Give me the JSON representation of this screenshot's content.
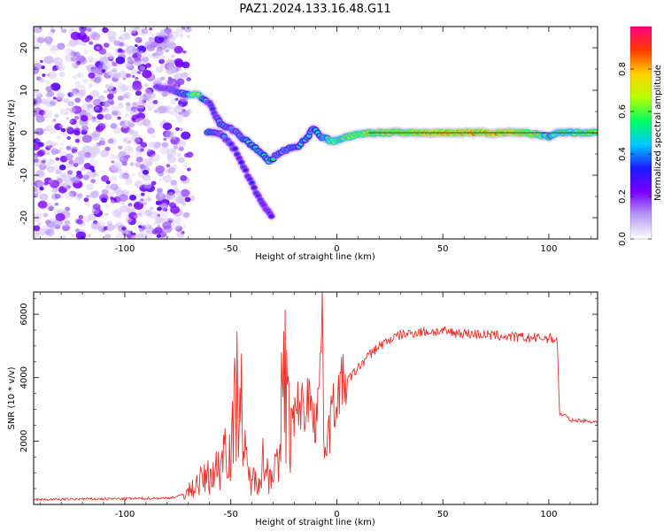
{
  "title": "PAZ1.2024.133.16.48.G11",
  "chart_data": [
    {
      "type": "heatmap",
      "xlabel": "Height of straight line (km)",
      "ylabel": "Frequency (Hz)",
      "xlim": [
        -143,
        123
      ],
      "ylim": [
        -25,
        25
      ],
      "xticks": [
        -100,
        -50,
        0,
        50,
        100
      ],
      "yticks": [
        -20,
        -10,
        0,
        10,
        20
      ],
      "colorbar": {
        "label": "Normalized spectral amplitude",
        "range": [
          0,
          1
        ],
        "ticks": [
          0.0,
          0.2,
          0.4,
          0.6,
          0.8
        ],
        "colors": [
          "#ffffff",
          "#b89cf2",
          "#7a00ff",
          "#1a1aff",
          "#00c8ff",
          "#00ff60",
          "#b8ff00",
          "#ffd000",
          "#ff3a00",
          "#ff0080"
        ]
      },
      "noise_region_x": [
        -143,
        -72
      ],
      "ridge": [
        {
          "x": -85,
          "y": 11,
          "a": 0.28
        },
        {
          "x": -78,
          "y": 10,
          "a": 0.35
        },
        {
          "x": -70,
          "y": 9,
          "a": 0.55
        },
        {
          "x": -66,
          "y": 9,
          "a": 0.8
        },
        {
          "x": -60,
          "y": 7,
          "a": 0.3
        },
        {
          "x": -57,
          "y": 4,
          "a": 0.35
        },
        {
          "x": -55,
          "y": 2,
          "a": 0.45
        },
        {
          "x": -50,
          "y": 1,
          "a": 0.4
        },
        {
          "x": -45,
          "y": -1,
          "a": 0.45
        },
        {
          "x": -40,
          "y": -3,
          "a": 0.5
        },
        {
          "x": -35,
          "y": -5,
          "a": 0.5
        },
        {
          "x": -32,
          "y": -7,
          "a": 0.55
        },
        {
          "x": -28,
          "y": -5,
          "a": 0.45
        },
        {
          "x": -24,
          "y": -4,
          "a": 0.45
        },
        {
          "x": -18,
          "y": -3,
          "a": 0.5
        },
        {
          "x": -14,
          "y": -1,
          "a": 0.5
        },
        {
          "x": -11,
          "y": 1,
          "a": 0.45
        },
        {
          "x": -7,
          "y": -1,
          "a": 0.55
        },
        {
          "x": -2,
          "y": -2,
          "a": 0.65
        },
        {
          "x": 5,
          "y": -1,
          "a": 0.7
        },
        {
          "x": 15,
          "y": 0,
          "a": 0.75
        },
        {
          "x": 30,
          "y": 0,
          "a": 0.8
        },
        {
          "x": 50,
          "y": 0,
          "a": 0.85
        },
        {
          "x": 70,
          "y": 0,
          "a": 0.85
        },
        {
          "x": 90,
          "y": 0,
          "a": 0.8
        },
        {
          "x": 100,
          "y": -1,
          "a": 0.6
        },
        {
          "x": 105,
          "y": 0,
          "a": 0.65
        },
        {
          "x": 115,
          "y": 0,
          "a": 0.7
        },
        {
          "x": 123,
          "y": 0,
          "a": 0.7
        }
      ],
      "lower_branch": [
        {
          "x": -61,
          "y": 0,
          "a": 0.5
        },
        {
          "x": -55,
          "y": 0,
          "a": 0.4
        },
        {
          "x": -48,
          "y": -4,
          "a": 0.3
        },
        {
          "x": -44,
          "y": -8,
          "a": 0.3
        },
        {
          "x": -40,
          "y": -12,
          "a": 0.35
        },
        {
          "x": -36,
          "y": -16,
          "a": 0.3
        },
        {
          "x": -30,
          "y": -20,
          "a": 0.2
        }
      ]
    },
    {
      "type": "line",
      "xlabel": "Height of straight line (km)",
      "ylabel": "SNR (10 * v/v)",
      "xlim": [
        -143,
        123
      ],
      "ylim": [
        0,
        6700
      ],
      "xticks": [
        -100,
        -50,
        0,
        50,
        100
      ],
      "yticks": [
        2000,
        4000,
        6000
      ],
      "color": "#e8302a",
      "points": [
        [
          -143,
          150
        ],
        [
          -120,
          170
        ],
        [
          -100,
          180
        ],
        [
          -80,
          200
        ],
        [
          -75,
          250
        ],
        [
          -70,
          400
        ],
        [
          -65,
          700
        ],
        [
          -60,
          900
        ],
        [
          -55,
          1200
        ],
        [
          -52,
          2200
        ],
        [
          -50,
          1500
        ],
        [
          -48,
          3000
        ],
        [
          -46,
          4500
        ],
        [
          -44,
          1800
        ],
        [
          -42,
          900
        ],
        [
          -38,
          700
        ],
        [
          -35,
          1400
        ],
        [
          -32,
          900
        ],
        [
          -30,
          1300
        ],
        [
          -27,
          1000
        ],
        [
          -25,
          5700
        ],
        [
          -24,
          3500
        ],
        [
          -22,
          2300
        ],
        [
          -20,
          2600
        ],
        [
          -18,
          3200
        ],
        [
          -15,
          3000
        ],
        [
          -12,
          3600
        ],
        [
          -10,
          2500
        ],
        [
          -8,
          4000
        ],
        [
          -7,
          6600
        ],
        [
          -6,
          2000
        ],
        [
          -4,
          2300
        ],
        [
          -1,
          3200
        ],
        [
          2,
          3800
        ],
        [
          5,
          3900
        ],
        [
          10,
          4300
        ],
        [
          15,
          4700
        ],
        [
          20,
          5000
        ],
        [
          25,
          5200
        ],
        [
          30,
          5350
        ],
        [
          40,
          5450
        ],
        [
          50,
          5450
        ],
        [
          60,
          5400
        ],
        [
          70,
          5350
        ],
        [
          80,
          5300
        ],
        [
          90,
          5250
        ],
        [
          100,
          5250
        ],
        [
          104,
          5200
        ],
        [
          105,
          2850
        ],
        [
          108,
          2800
        ],
        [
          110,
          2650
        ],
        [
          115,
          2650
        ],
        [
          123,
          2600
        ]
      ]
    }
  ]
}
